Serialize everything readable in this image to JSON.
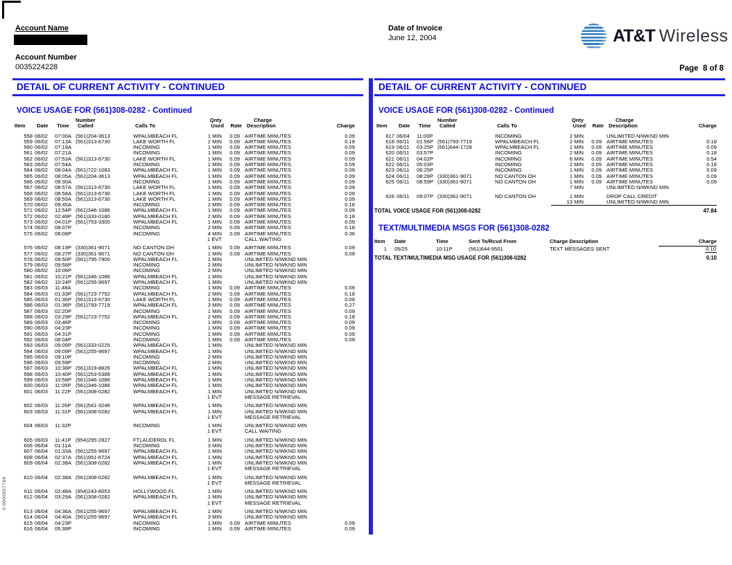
{
  "page": {
    "side_code": "0.0000027766"
  },
  "header": {
    "account_name_label": "Account Name",
    "account_number_label": "Account Number",
    "account_number": "0035224228",
    "date_of_invoice_label": "Date of Invoice",
    "invoice_date": "June 12, 2004",
    "brand_att": "AT&T",
    "brand_wireless": "Wireless",
    "page_label": "Page  8 of 8"
  },
  "banner_title": "DETAIL OF CURRENT ACTIVITY - CONTINUED",
  "voice": {
    "section_title": "VOICE USAGE FOR (561)308-0282 - Continued",
    "head1": {
      "number": "Number",
      "qnty": "Qnty",
      "charge": "Charge"
    },
    "head2": {
      "item": "Item",
      "date": "Date",
      "time": "Time",
      "called": "Called",
      "calls_to": "Calls To",
      "used": "Used",
      "rate": "Rate",
      "description": "Description",
      "charge": "Charge"
    },
    "left_rows": [
      [
        "558",
        "06/02",
        "07:00A",
        "(561)204-3613",
        "WPALMBEACH FL",
        "1 MIN",
        "0.09",
        "AIRTIME MINUTES",
        "0.09"
      ],
      [
        "559",
        "06/02",
        "07:13A",
        "(561)313-6730",
        "LAKE WORTH FL",
        "2 MIN",
        "0.09",
        "AIRTIME MINUTES",
        "0.18"
      ],
      [
        "560",
        "06/02",
        "07:19A",
        "",
        "INCOMING",
        "1 MIN",
        "0.09",
        "AIRTIME MINUTES",
        "0.09"
      ],
      [
        "561",
        "06/02",
        "07:21A",
        "",
        "INCOMING",
        "1 MIN",
        "0.09",
        "AIRTIME MINUTES",
        "0.09"
      ],
      [
        "562",
        "06/02",
        "07:53A",
        "(561)313-6730",
        "LAKE WORTH FL",
        "1 MIN",
        "0.09",
        "AIRTIME MINUTES",
        "0.09"
      ],
      [
        "563",
        "06/02",
        "07:54A",
        "",
        "INCOMING",
        "1 MIN",
        "0.09",
        "AIRTIME MINUTES",
        "0.09"
      ],
      [
        "564",
        "06/02",
        "08:04A",
        "(561)722-1083",
        "WPALMBEACH FL",
        "1 MIN",
        "0.09",
        "AIRTIME MINUTES",
        "0.09"
      ],
      [
        "565",
        "06/02",
        "08:05A",
        "(561)204-3613",
        "WPALMBEACH FL",
        "1 MIN",
        "0.09",
        "AIRTIME MINUTES",
        "0.09"
      ],
      [
        "566",
        "06/02",
        "08:30A",
        "",
        "INCOMING",
        "1 MIN",
        "0.09",
        "AIRTIME MINUTES",
        "0.09"
      ],
      [
        "567",
        "06/02",
        "08:57A",
        "(561)313-6730",
        "LAKE WORTH FL",
        "1 MIN",
        "0.09",
        "AIRTIME MINUTES",
        "0.09"
      ],
      [
        "568",
        "06/02",
        "08:58A",
        "(561)313-6730",
        "LAKE WORTH FL",
        "1 MIN",
        "0.09",
        "AIRTIME MINUTES",
        "0.09"
      ],
      [
        "569",
        "06/02",
        "08:59A",
        "(561)313-6730",
        "LAKE WORTH FL",
        "1 MIN",
        "0.09",
        "AIRTIME MINUTES",
        "0.09"
      ],
      [
        "570",
        "06/02",
        "09:45A",
        "",
        "INCOMING",
        "2 MIN",
        "0.09",
        "AIRTIME MINUTES",
        "0.18"
      ],
      [
        "571",
        "06/02",
        "12:54P",
        "(561)346-1086",
        "WPALMBEACH FL",
        "1 MIN",
        "0.09",
        "AIRTIME MINUTES",
        "0.09"
      ],
      [
        "572",
        "06/02",
        "02:49P",
        "(561)333-0180",
        "WPALMBEACH FL",
        "2 MIN",
        "0.09",
        "AIRTIME MINUTES",
        "0.18"
      ],
      [
        "573",
        "06/02",
        "04:01P",
        "(561)753-3300",
        "WPALMBEACH FL",
        "1 MIN",
        "0.09",
        "AIRTIME MINUTES",
        "0.09"
      ],
      [
        "574",
        "06/02",
        "08:07P",
        "",
        "INCOMING",
        "2 MIN",
        "0.09",
        "AIRTIME MINUTES",
        "0.18"
      ],
      [
        "575",
        "06/02",
        "08:08P",
        "",
        "INCOMING",
        "4 MIN",
        "0.09",
        "AIRTIME MINUTES",
        "0.36"
      ],
      [
        "",
        "",
        "",
        "",
        "",
        "1 EVT",
        "",
        "CALL WAITING",
        ""
      ],
      [
        "GAP"
      ],
      [
        "576",
        "06/02",
        "08:19P",
        "(330)361-9071",
        "NO CANTON OH",
        "1 MIN",
        "0.09",
        "AIRTIME MINUTES",
        "0.09"
      ],
      [
        "577",
        "06/02",
        "08:27P",
        "(330)361-9071",
        "NO CANTON OH",
        "1 MIN",
        "0.09",
        "AIRTIME MINUTES",
        "0.09"
      ],
      [
        "578",
        "06/02",
        "09:50P",
        "(561)795-7900",
        "WPALMBEACH FL",
        "1 MIN",
        "",
        "UNLIMITED N/WKND MIN",
        ""
      ],
      [
        "579",
        "06/02",
        "09:58P",
        "",
        "INCOMING",
        "2 MIN",
        "",
        "UNLIMITED N/WKND MIN",
        ""
      ],
      [
        "580",
        "06/02",
        "10:06P",
        "",
        "INCOMING",
        "2 MIN",
        "",
        "UNLIMITED N/WKND MIN",
        ""
      ],
      [
        "581",
        "06/02",
        "10:21P",
        "(561)346-1086",
        "WPALMBEACH FL",
        "1 MIN",
        "",
        "UNLIMITED N/WKND MIN",
        ""
      ],
      [
        "582",
        "06/02",
        "10:24P",
        "(561)255-9697",
        "WPALMBEACH FL",
        "1 MIN",
        "",
        "UNLIMITED N/WKND MIN",
        ""
      ],
      [
        "583",
        "06/03",
        "11:48A",
        "",
        "INCOMING",
        "1 MIN",
        "0.09",
        "AIRTIME MINUTES",
        "0.09"
      ],
      [
        "584",
        "06/03",
        "01:33P",
        "(561)723-7752",
        "WPALMBEACH FL",
        "2 MIN",
        "0.09",
        "AIRTIME MINUTES",
        "0.18"
      ],
      [
        "585",
        "06/03",
        "01:36P",
        "(561)313-6730",
        "LAKE WORTH FL",
        "1 MIN",
        "0.09",
        "AIRTIME MINUTES",
        "0.09"
      ],
      [
        "586",
        "06/03",
        "01:36P",
        "(561)793-7719",
        "WPALMBEACH FL",
        "3 MIN",
        "0.09",
        "AIRTIME MINUTES",
        "0.27"
      ],
      [
        "587",
        "06/03",
        "02:20P",
        "",
        "INCOMING",
        "1 MIN",
        "0.09",
        "AIRTIME MINUTES",
        "0.09"
      ],
      [
        "588",
        "06/03",
        "03:29P",
        "(561)723-7752",
        "WPALMBEACH FL",
        "2 MIN",
        "0.09",
        "AIRTIME MINUTES",
        "0.18"
      ],
      [
        "589",
        "06/03",
        "03:46P",
        "",
        "INCOMING",
        "1 MIN",
        "0.09",
        "AIRTIME MINUTES",
        "0.09"
      ],
      [
        "590",
        "06/03",
        "04:23P",
        "",
        "INCOMING",
        "1 MIN",
        "0.09",
        "AIRTIME MINUTES",
        "0.09"
      ],
      [
        "591",
        "06/03",
        "04:31P",
        "",
        "INCOMING",
        "1 MIN",
        "0.09",
        "AIRTIME MINUTES",
        "0.09"
      ],
      [
        "592",
        "06/03",
        "08:04P",
        "",
        "INCOMING",
        "1 MIN",
        "0.09",
        "AIRTIME MINUTES",
        "0.09"
      ],
      [
        "593",
        "06/03",
        "09:05P",
        "(561)333-0225",
        "WPALMBEACH FL",
        "1 MIN",
        "",
        "UNLIMITED N/WKND MIN",
        ""
      ],
      [
        "594",
        "06/03",
        "09:09P",
        "(561)255-9697",
        "WPALMBEACH FL",
        "1 MIN",
        "",
        "UNLIMITED N/WKND MIN",
        ""
      ],
      [
        "595",
        "06/03",
        "09:10P",
        "",
        "INCOMING",
        "2 MIN",
        "",
        "UNLIMITED N/WKND MIN",
        ""
      ],
      [
        "596",
        "06/03",
        "09:59P",
        "",
        "INCOMING",
        "2 MIN",
        "",
        "UNLIMITED N/WKND MIN",
        ""
      ],
      [
        "597",
        "06/03",
        "10:38P",
        "(561)319-8826",
        "WPALMBEACH FL",
        "1 MIN",
        "",
        "UNLIMITED N/WKND MIN",
        ""
      ],
      [
        "598",
        "06/03",
        "10:40P",
        "(561)253-5388",
        "WPALMBEACH FL",
        "1 MIN",
        "",
        "UNLIMITED N/WKND MIN",
        ""
      ],
      [
        "599",
        "06/03",
        "10:58P",
        "(561)346-1086",
        "WPALMBEACH FL",
        "1 MIN",
        "",
        "UNLIMITED N/WKND MIN",
        ""
      ],
      [
        "600",
        "06/03",
        "11:05P",
        "(561)346-1086",
        "WPALMBEACH FL",
        "1 MIN",
        "",
        "UNLIMITED N/WKND MIN",
        ""
      ],
      [
        "601",
        "06/03",
        "11:22P",
        "(561)308-0282",
        "WPALMBEACH FL",
        "1 MIN",
        "",
        "UNLIMITED N/WKND MIN",
        ""
      ],
      [
        "",
        "",
        "",
        "",
        "",
        "1 EVT",
        "",
        "MESSAGE RETRIEVAL",
        ""
      ],
      [
        "GAP"
      ],
      [
        "602",
        "06/03",
        "11:26P",
        "(561)541-3246",
        "WPALMBEACH FL",
        "1 MIN",
        "",
        "UNLIMITED N/WKND MIN",
        ""
      ],
      [
        "603",
        "06/03",
        "11:31P",
        "(561)308-0282",
        "WPALMBEACH FL",
        "1 MIN",
        "",
        "UNLIMITED N/WKND MIN",
        ""
      ],
      [
        "",
        "",
        "",
        "",
        "",
        "1 EVT",
        "",
        "MESSAGE RETRIEVAL",
        ""
      ],
      [
        "GAP"
      ],
      [
        "604",
        "06/03",
        "11:32P",
        "",
        "INCOMING",
        "1 MIN",
        "",
        "UNLIMITED N/WKND MIN",
        ""
      ],
      [
        "",
        "",
        "",
        "",
        "",
        "1 EVT",
        "",
        "CALL WAITING",
        ""
      ],
      [
        "GAP"
      ],
      [
        "605",
        "06/03",
        "11:41P",
        "(954)295-2827",
        "FTLAUDERDL FL",
        "1 MIN",
        "",
        "UNLIMITED N/WKND MIN",
        ""
      ],
      [
        "606",
        "06/04",
        "01:11A",
        "",
        "INCOMING",
        "3 MIN",
        "",
        "UNLIMITED N/WKND MIN",
        ""
      ],
      [
        "607",
        "06/04",
        "01:33A",
        "(561)255-9697",
        "WPALMBEACH FL",
        "1 MIN",
        "",
        "UNLIMITED N/WKND MIN",
        ""
      ],
      [
        "608",
        "06/04",
        "02:37A",
        "(561)951-6724",
        "WPALMBEACH FL",
        "1 MIN",
        "",
        "UNLIMITED N/WKND MIN",
        ""
      ],
      [
        "609",
        "06/04",
        "02:38A",
        "(561)308-0282",
        "WPALMBEACH FL",
        "1 MIN",
        "",
        "UNLIMITED N/WKND MIN",
        ""
      ],
      [
        "",
        "",
        "",
        "",
        "",
        "1 EVT",
        "",
        "MESSAGE RETRIEVAL",
        ""
      ],
      [
        "GAP"
      ],
      [
        "610",
        "06/04",
        "02:38A",
        "(561)308-0282",
        "WPALMBEACH FL",
        "1 MIN",
        "",
        "UNLIMITED N/WKND MIN",
        ""
      ],
      [
        "",
        "",
        "",
        "",
        "",
        "1 EVT",
        "",
        "MESSAGE RETRIEVAL",
        ""
      ],
      [
        "GAP"
      ],
      [
        "611",
        "06/04",
        "02:48A",
        "(954)243-8053",
        "HOLLYWOOD FL",
        "1 MIN",
        "",
        "UNLIMITED N/WKND MIN",
        ""
      ],
      [
        "612",
        "06/04",
        "03:29A",
        "(561)308-0282",
        "WPALMBEACH FL",
        "1 MIN",
        "",
        "UNLIMITED N/WKND MIN",
        ""
      ],
      [
        "",
        "",
        "",
        "",
        "",
        "1 EVT",
        "",
        "MESSAGE RETRIEVAL",
        ""
      ],
      [
        "GAP"
      ],
      [
        "613",
        "06/04",
        "04:36A",
        "(561)255-9697",
        "WPALMBEACH FL",
        "1 MIN",
        "",
        "UNLIMITED N/WKND MIN",
        ""
      ],
      [
        "614",
        "06/04",
        "04:40A",
        "(561)255-9697",
        "WPALMBEACH FL",
        "3 MIN",
        "",
        "UNLIMITED N/WKND MIN",
        ""
      ],
      [
        "615",
        "06/04",
        "04:23P",
        "",
        "INCOMING",
        "1 MIN",
        "0.09",
        "AIRTIME MINUTES",
        "0.09"
      ],
      [
        "616",
        "06/04",
        "05:38P",
        "",
        "INCOMING",
        "1 MIN",
        "0.09",
        "AIRTIME MINUTES",
        "0.09"
      ]
    ],
    "right_rows": [
      [
        "617",
        "06/04",
        "11:00P",
        "",
        "INCOMING",
        "2 MIN",
        "",
        "UNLIMITED N/WKND MIN",
        ""
      ],
      [
        "618",
        "06/11",
        "01:56P",
        "(561)793-7719",
        "WPALMBEACH FL",
        "2 MIN",
        "0.09",
        "AIRTIME MINUTES",
        "0.18"
      ],
      [
        "619",
        "06/11",
        "03:25P",
        "(561)644-1728",
        "WPALMBEACH FL",
        "1 MIN",
        "0.09",
        "AIRTIME MINUTES",
        "0.09"
      ],
      [
        "620",
        "06/11",
        "03:57P",
        "",
        "INCOMING",
        "2 MIN",
        "0.09",
        "AIRTIME MINUTES",
        "0.18"
      ],
      [
        "621",
        "06/11",
        "04:02P",
        "",
        "INCOMING",
        "6 MIN",
        "0.09",
        "AIRTIME MINUTES",
        "0.54"
      ],
      [
        "622",
        "06/11",
        "05:03P",
        "",
        "INCOMING",
        "2 MIN",
        "0.09",
        "AIRTIME MINUTES",
        "0.18"
      ],
      [
        "623",
        "06/11",
        "06:25P",
        "",
        "INCOMING",
        "1 MIN",
        "0.09",
        "AIRTIME MINUTES",
        "0.09"
      ],
      [
        "624",
        "06/11",
        "08:28P",
        "(330)361-9071",
        "NO CANTON OH",
        "1 MIN",
        "0.09",
        "AIRTIME MINUTES",
        "0.09"
      ],
      [
        "625",
        "06/11",
        "08:59P",
        "(330)361-9071",
        "NO CANTON OH",
        "1 MIN",
        "0.09",
        "AIRTIME MINUTES",
        "0.09"
      ],
      [
        "",
        "",
        "",
        "",
        "",
        "7 MIN",
        "",
        "UNLIMITED N/WKND MIN",
        ""
      ],
      [
        "GAP"
      ],
      [
        "626",
        "06/11",
        "09:07P",
        "(330)361-9071",
        "NO CANTON OH",
        "1 MIN",
        "",
        "DROP CALL CREDIT",
        ""
      ],
      [
        "",
        "",
        "",
        "",
        "",
        "13 MIN",
        "",
        "UNLIMITED N/WKND MIN",
        "",
        "RULE"
      ]
    ],
    "total_label": "TOTAL VOICE USAGE FOR (561)308-0282",
    "total_value": "47.84"
  },
  "messages": {
    "section_title": "TEXT/MULTIMEDIA MSGS FOR (561)308-0282",
    "head": {
      "item": "Item",
      "date": "Date",
      "time": "Time",
      "sent_to": "Sent To/Rcvd From",
      "charge_description": "Charge Description",
      "charge": "Charge"
    },
    "rows": [
      [
        "1",
        "05/25",
        "10:11P",
        "(561)644-9501",
        "TEXT MESSAGES SENT",
        "0.10"
      ]
    ],
    "total_label": "TOTAL TEXT/MULTIMEDIA MSG USAGE FOR (561)308-0282",
    "total_value": "0.10"
  },
  "colors": {
    "accent_blue": "#0707f0",
    "rule_blue": "#2222e0"
  }
}
